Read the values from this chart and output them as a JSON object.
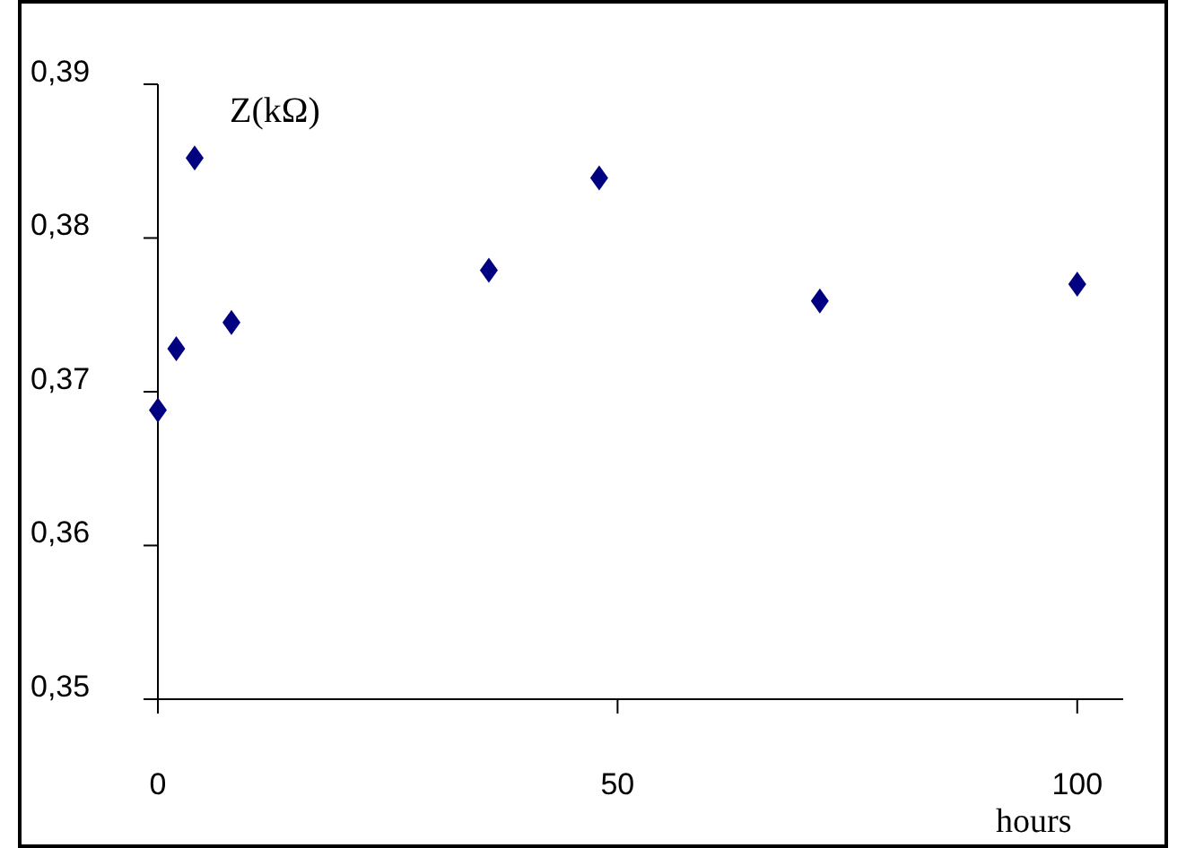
{
  "chart_data": {
    "type": "scatter",
    "ylabel": "Z(kΩ)",
    "xlabel": "hours",
    "x": [
      0,
      2,
      4,
      8,
      36,
      48,
      72,
      100
    ],
    "series": [
      {
        "color": "#000080",
        "values": [
          0.3688,
          0.3728,
          0.3852,
          0.3745,
          0.3779,
          0.3839,
          0.3759,
          0.377
        ]
      }
    ],
    "xlim": [
      0,
      105
    ],
    "xticks": [
      0,
      50,
      100
    ],
    "ylim": [
      0.35,
      0.39
    ],
    "yticks": [
      {
        "value": 0.35,
        "label": "0,35"
      },
      {
        "value": 0.36,
        "label": "0,36"
      },
      {
        "value": 0.37,
        "label": "0,37"
      },
      {
        "value": 0.38,
        "label": "0,38"
      },
      {
        "value": 0.39,
        "label": "0,39"
      }
    ],
    "grid": false,
    "marker": "diamond"
  }
}
